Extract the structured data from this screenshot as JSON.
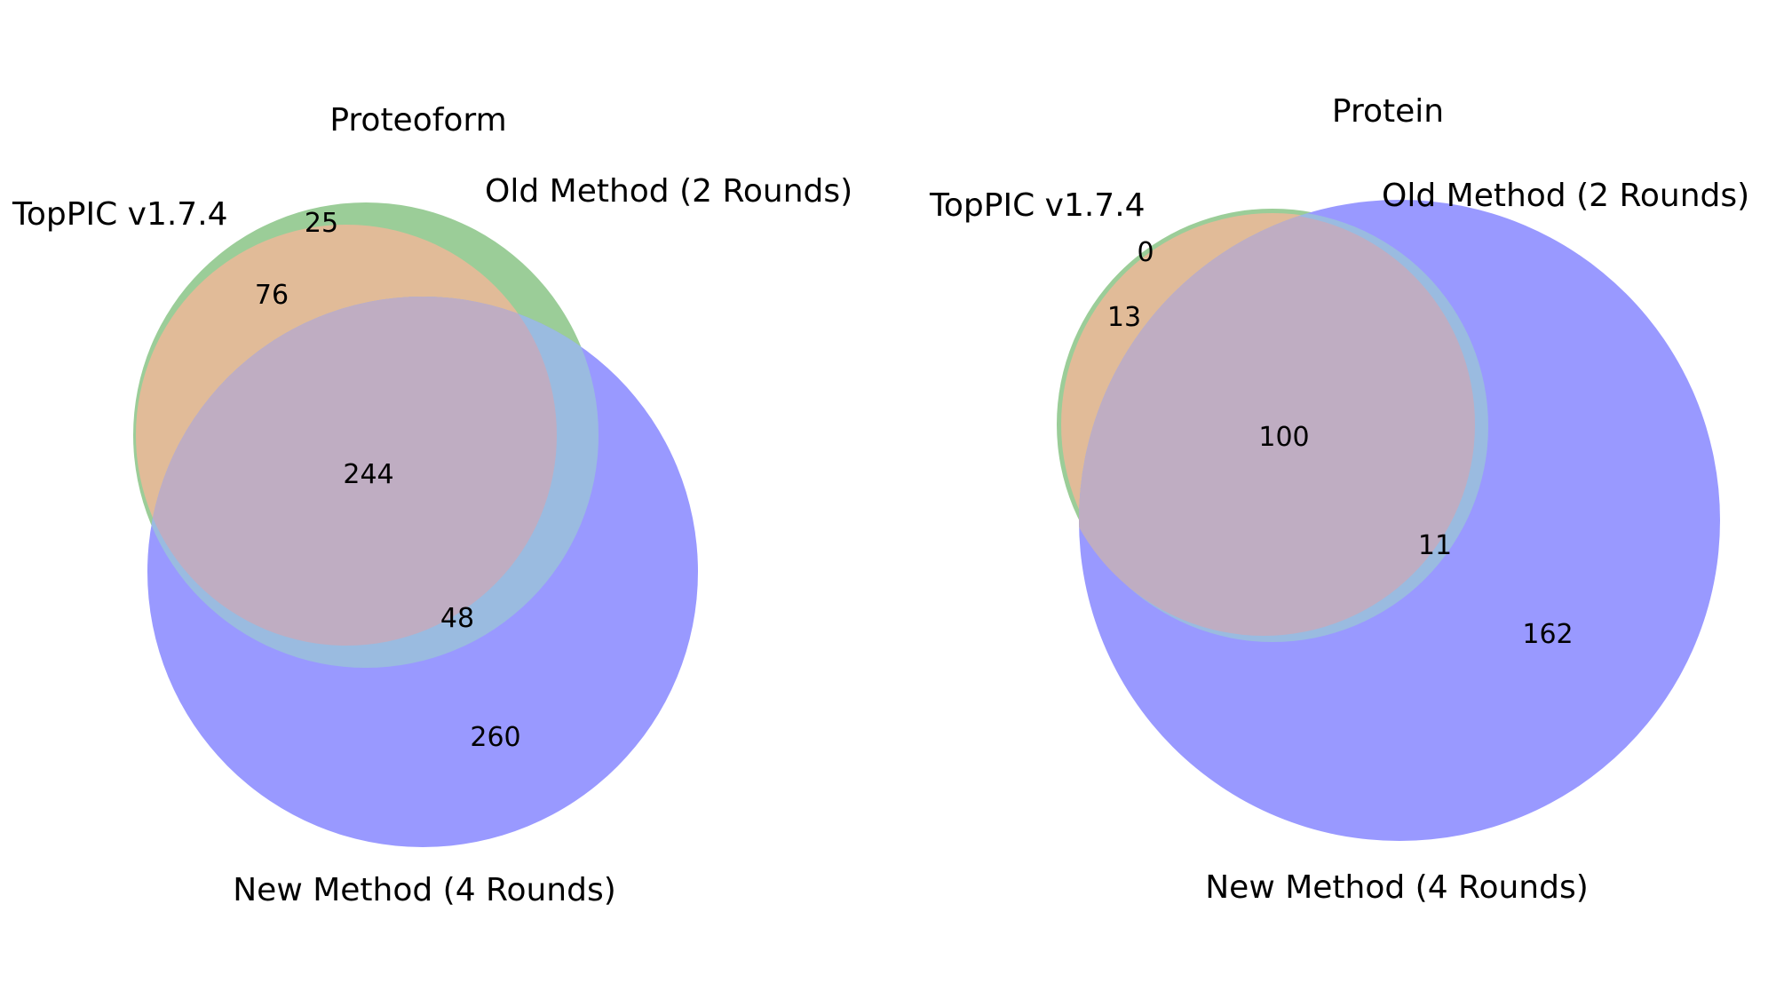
{
  "colors": {
    "topPIC": "#9bcd98",
    "old_method": "#e1bb98",
    "new_method": "#9999ff",
    "old_and_new": "#bfadc2",
    "new_not_old": "#9abbe0"
  },
  "panels": [
    {
      "title": "Proteoform",
      "labels": {
        "topPIC": "TopPIC v1.7.4",
        "old_method": "Old Method (2 Rounds)",
        "new_method": "New Method (4 Rounds)"
      },
      "counts": {
        "topPIC_only": "25",
        "topPIC_and_old": "76",
        "all_three": "244",
        "topPIC_and_new": "48",
        "new_only": "260"
      }
    },
    {
      "title": "Protein",
      "labels": {
        "topPIC": "TopPIC v1.7.4",
        "old_method": "Old Method (2 Rounds)",
        "new_method": "New Method (4 Rounds)"
      },
      "counts": {
        "topPIC_only": "0",
        "topPIC_and_old": "13",
        "all_three": "100",
        "topPIC_and_new": "11",
        "new_only": "162"
      }
    }
  ]
}
